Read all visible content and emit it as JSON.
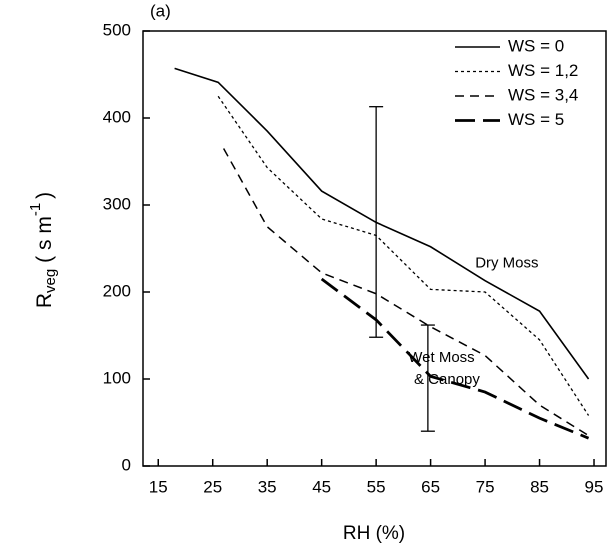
{
  "chart_data": {
    "type": "line",
    "label_a": "(a)",
    "xlabel": "RH (%)",
    "ylabel": {
      "main": "R",
      "sub": "veg",
      "rest": "( s m",
      "sup": "-1",
      "end": ")"
    },
    "xlim": [
      12.2,
      97.2
    ],
    "ylim": [
      0,
      500
    ],
    "xticks": [
      15,
      25,
      35,
      45,
      55,
      65,
      75,
      85,
      95
    ],
    "yticks": [
      0,
      100,
      200,
      300,
      400,
      500
    ],
    "legend": "upper right",
    "series": [
      {
        "name": "WS = 0",
        "color": "#000000",
        "style": "solid",
        "x": [
          18,
          26,
          35,
          45,
          55,
          65,
          75,
          85,
          94
        ],
        "values": [
          457,
          441,
          385,
          316,
          280,
          252,
          213,
          178,
          100
        ]
      },
      {
        "name": "WS = 1,2",
        "color": "#000000",
        "style": "dotted",
        "x": [
          26,
          35,
          45,
          55,
          65,
          75,
          85,
          94
        ],
        "values": [
          425,
          343,
          284,
          265,
          203,
          200,
          145,
          58
        ]
      },
      {
        "name": "WS = 3,4",
        "color": "#000000",
        "style": "dashed",
        "x": [
          27,
          35,
          45,
          55,
          65,
          75,
          85,
          94
        ],
        "values": [
          365,
          275,
          222,
          198,
          160,
          127,
          70,
          35
        ]
      },
      {
        "name": "WS = 5",
        "color": "#000000",
        "style": "longdash",
        "x": [
          45,
          55,
          65,
          75,
          85,
          94
        ],
        "values": [
          215,
          168,
          103,
          85,
          55,
          32
        ]
      }
    ],
    "error_bars": [
      {
        "x": 55,
        "low": 148,
        "high": 413
      },
      {
        "x": 64.5,
        "low": 40,
        "high": 162
      }
    ],
    "annotations": [
      {
        "text": "Dry Moss",
        "x": 79,
        "y": 233
      },
      {
        "text": "Wet Moss",
        "x": 67,
        "y": 124
      },
      {
        "text": "& Canopy",
        "x": 68,
        "y": 99
      }
    ]
  }
}
